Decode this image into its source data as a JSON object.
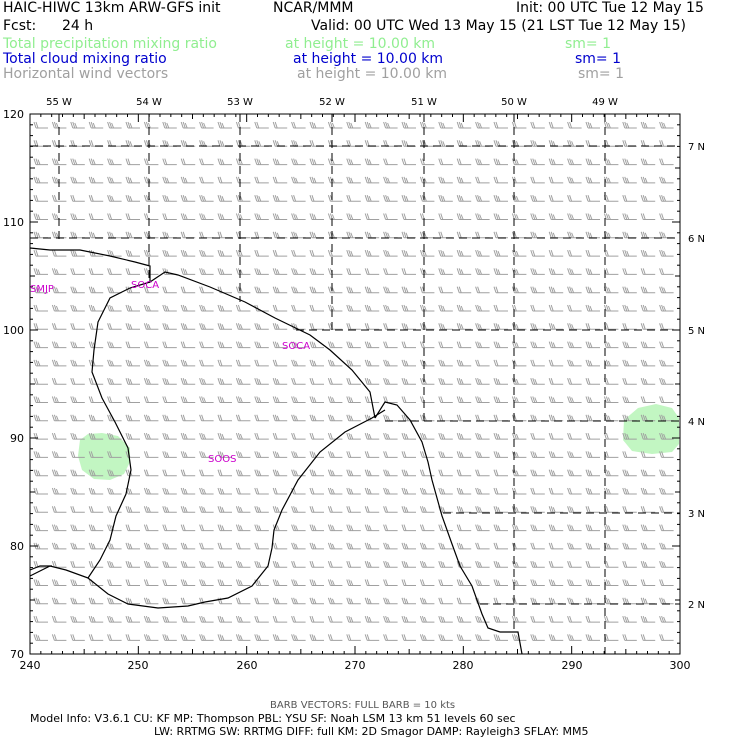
{
  "header": {
    "model_title": "HAIC-HIWC 13km ARW-GFS init",
    "org": "NCAR/MMM",
    "init": "Init: 00 UTC Tue 12 May 15",
    "fcst_label": "Fcst:",
    "fcst_value": "24 h",
    "valid": "Valid: 00 UTC Wed 13 May 15 (21 LST Tue 12 May 15)"
  },
  "fields": [
    {
      "name": "Total precipitation mixing ratio",
      "height": "at height = 10.00 km",
      "sm": "sm= 1",
      "color": "#90ee90"
    },
    {
      "name": "Total cloud mixing ratio",
      "height": "at height = 10.00 km",
      "sm": "sm= 1",
      "color": "#0000cd"
    },
    {
      "name": "Horizontal wind vectors",
      "height": "at height = 10.00 km",
      "sm": "sm= 1",
      "color": "#a0a0a0"
    }
  ],
  "map": {
    "x_ticks": [
      "240",
      "250",
      "260",
      "270",
      "280",
      "290",
      "300"
    ],
    "y_ticks": [
      "70",
      "80",
      "90",
      "100",
      "110",
      "120"
    ],
    "lon_labels": [
      "55 W",
      "54 W",
      "53 W",
      "52 W",
      "51 W",
      "50 W",
      "49 W"
    ],
    "lat_labels": [
      "7 N",
      "6 N",
      "5 N",
      "4 N",
      "3 N",
      "2 N"
    ],
    "stations": [
      "SMJP",
      "SOCA",
      "SOCA",
      "SOOS"
    ],
    "barb_color": "#a0a0a0",
    "precip_color": "#90ee90",
    "station_color": "#cc00cc"
  },
  "footer": {
    "barb_line": "BARB VECTORS:  FULL BARB = 10 kts",
    "model_line1": "Model Info: V3.6.1     CU: KF       MP: Thompson     PBL: YSU       SF: Noah LSM      13 km    51 levels    60 sec",
    "model_line2": "LW: RRTMG    SW: RRTMG   DIFF: full    KM: 2D Smagor  DAMP: Rayleigh3   SFLAY: MM5"
  }
}
